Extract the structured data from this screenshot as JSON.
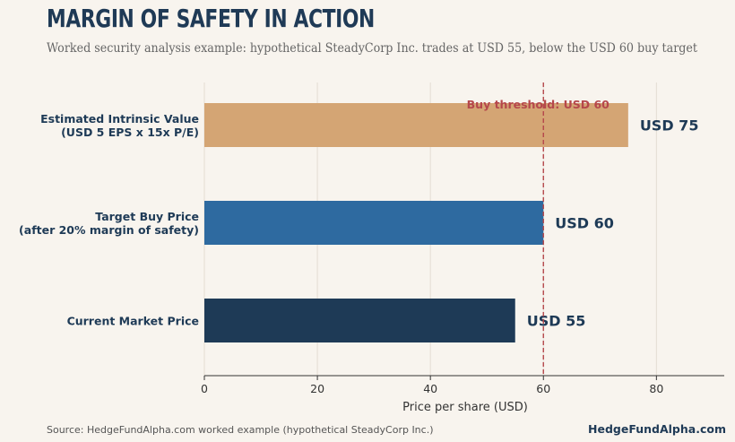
{
  "header": {
    "title": "Margin of Safety in Action",
    "subtitle": "Worked security analysis example: hypothetical SteadyCorp Inc. trades at USD 55, below the USD 60 buy target"
  },
  "footer": {
    "source": "Source: HedgeFundAlpha.com worked example (hypothetical SteadyCorp Inc.)",
    "brand": "HedgeFundAlpha.com"
  },
  "chart_data": {
    "type": "bar",
    "orientation": "horizontal",
    "categories": [
      [
        "Estimated Intrinsic Value",
        "(USD 5 EPS x 15x P/E)"
      ],
      [
        "Target Buy Price",
        "(after 20% margin of safety)"
      ],
      [
        "Current Market Price"
      ]
    ],
    "values": [
      75,
      60,
      55
    ],
    "value_labels": [
      "USD 75",
      "USD 60",
      "USD 55"
    ],
    "colors": [
      "#d4a574",
      "#2e6aa0",
      "#1e3a56"
    ],
    "xlabel": "Price per share (USD)",
    "xlim": [
      0,
      92
    ],
    "xticks": [
      0,
      20,
      40,
      60,
      80
    ],
    "grid": true,
    "reference_line": {
      "value": 60,
      "label": "Buy threshold: USD 60",
      "color": "#b5474b",
      "style": "dashed"
    }
  }
}
